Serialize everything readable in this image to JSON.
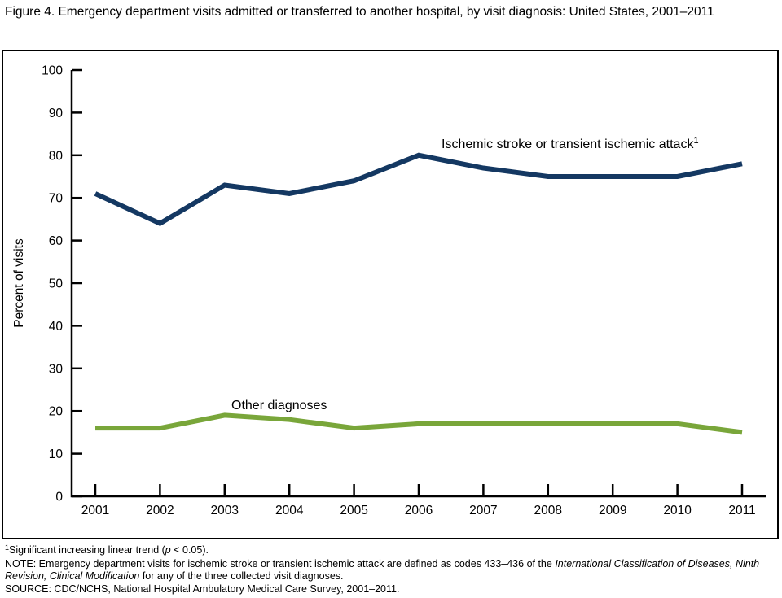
{
  "figure": {
    "title": "Figure 4. Emergency department visits admitted or transferred to another hospital, by visit diagnosis: United States, 2001–2011"
  },
  "chart_data": {
    "type": "line",
    "title": "Figure 4. Emergency department visits admitted or transferred to another hospital, by visit diagnosis: United States, 2001–2011",
    "xlabel": "",
    "ylabel": "Percent of visits",
    "ylim": [
      0,
      100
    ],
    "ytick_step": 10,
    "grid": false,
    "legend_position": "inline-annotations",
    "categories": [
      "2001",
      "2002",
      "2003",
      "2004",
      "2005",
      "2006",
      "2007",
      "2008",
      "2009",
      "2010",
      "2011"
    ],
    "series": [
      {
        "name": "Ischemic stroke or transient ischemic attack",
        "name_superscript": "1",
        "color": "#143862",
        "values": [
          71,
          64,
          73,
          71,
          74,
          80,
          77,
          75,
          75,
          75,
          78
        ]
      },
      {
        "name": "Other diagnoses",
        "name_superscript": "",
        "color": "#79A63A",
        "values": [
          16,
          16,
          19,
          18,
          16,
          17,
          17,
          17,
          17,
          17,
          15
        ]
      }
    ]
  },
  "colors": {
    "series1": "#143862",
    "series2": "#79A63A",
    "axis": "#000000",
    "background": "#ffffff"
  },
  "footnotes": {
    "trend": {
      "sup": "1",
      "pre": "Significant increasing linear trend (",
      "italic": "p",
      "post": " < 0.05)."
    },
    "note": {
      "pre": "NOTE: Emergency department visits for ischemic stroke or transient ischemic attack are defined as codes 433–436 of the ",
      "italic": "International Classification of Diseases, Ninth Revision, Clinical Modification",
      "post": " for any of the three collected visit diagnoses."
    },
    "source": "SOURCE: CDC/NCHS, National Hospital Ambulatory Medical Care Survey, 2001–2011."
  }
}
